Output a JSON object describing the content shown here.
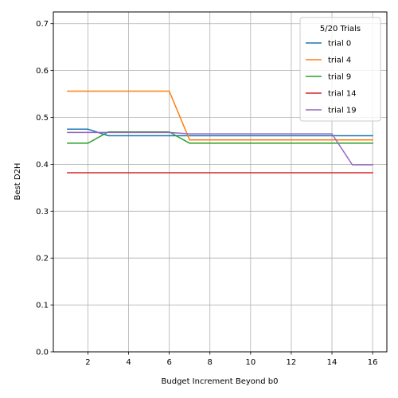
{
  "chart_data": {
    "type": "line",
    "xlabel": "Budget Increment Beyond b0",
    "ylabel": "Best D2H",
    "xlim": [
      0.3,
      16.7
    ],
    "ylim": [
      0.0,
      0.725
    ],
    "xticks": [
      2,
      4,
      6,
      8,
      10,
      12,
      14,
      16
    ],
    "yticks": [
      0.0,
      0.1,
      0.2,
      0.3,
      0.4,
      0.5,
      0.6,
      0.7
    ],
    "grid": true,
    "legend": {
      "title": "5/20 Trials",
      "placement": "top-right"
    },
    "x": [
      1,
      2,
      3,
      4,
      5,
      6,
      7,
      8,
      9,
      10,
      11,
      12,
      13,
      14,
      15,
      16
    ],
    "series": [
      {
        "name": "trial 0",
        "color": "#1f77b4",
        "values": [
          0.475,
          0.475,
          0.461,
          0.461,
          0.461,
          0.461,
          0.461,
          0.461,
          0.461,
          0.461,
          0.461,
          0.461,
          0.461,
          0.461,
          0.461,
          0.461
        ]
      },
      {
        "name": "trial 4",
        "color": "#ff7f0e",
        "values": [
          0.556,
          0.556,
          0.556,
          0.556,
          0.556,
          0.556,
          0.452,
          0.452,
          0.452,
          0.452,
          0.452,
          0.452,
          0.452,
          0.452,
          0.452,
          0.452
        ]
      },
      {
        "name": "trial 9",
        "color": "#2ca02c",
        "values": [
          0.445,
          0.445,
          0.469,
          0.469,
          0.469,
          0.469,
          0.445,
          0.445,
          0.445,
          0.445,
          0.445,
          0.445,
          0.445,
          0.445,
          0.445,
          0.445
        ]
      },
      {
        "name": "trial 14",
        "color": "#d62728",
        "values": [
          0.382,
          0.382,
          0.382,
          0.382,
          0.382,
          0.382,
          0.382,
          0.382,
          0.382,
          0.382,
          0.382,
          0.382,
          0.382,
          0.382,
          0.382,
          0.382
        ]
      },
      {
        "name": "trial 19",
        "color": "#9467bd",
        "values": [
          0.468,
          0.468,
          0.468,
          0.468,
          0.468,
          0.468,
          0.465,
          0.465,
          0.465,
          0.465,
          0.465,
          0.465,
          0.465,
          0.465,
          0.399,
          0.399
        ]
      }
    ]
  }
}
